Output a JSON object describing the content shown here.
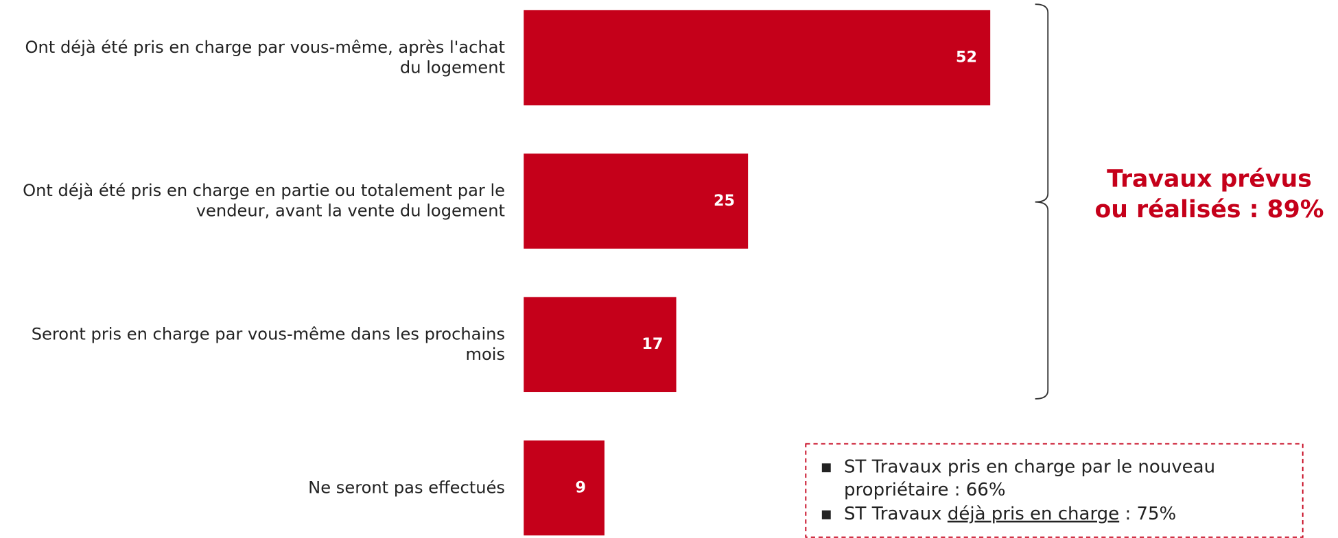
{
  "chart_data": {
    "type": "bar",
    "orientation": "horizontal",
    "categories": [
      "Ont déjà été pris en charge par vous-même, après l'achat du logement",
      "Ont déjà été pris en charge en partie ou totalement par le vendeur, avant la vente du logement",
      "Seront pris en charge par vous-même dans les prochains mois",
      "Ne seront pas effectués"
    ],
    "values": [
      52,
      25,
      17,
      9
    ],
    "color": "#c5001a",
    "annotation": [
      "Travaux prévus",
      "ou réalisés : 89%"
    ],
    "notes": [
      [
        "ST Travaux pris en charge par le nouveau",
        "propriétaire : 66%"
      ],
      [
        "ST Travaux ",
        "déjà pris en charge",
        " : 75%"
      ]
    ]
  }
}
